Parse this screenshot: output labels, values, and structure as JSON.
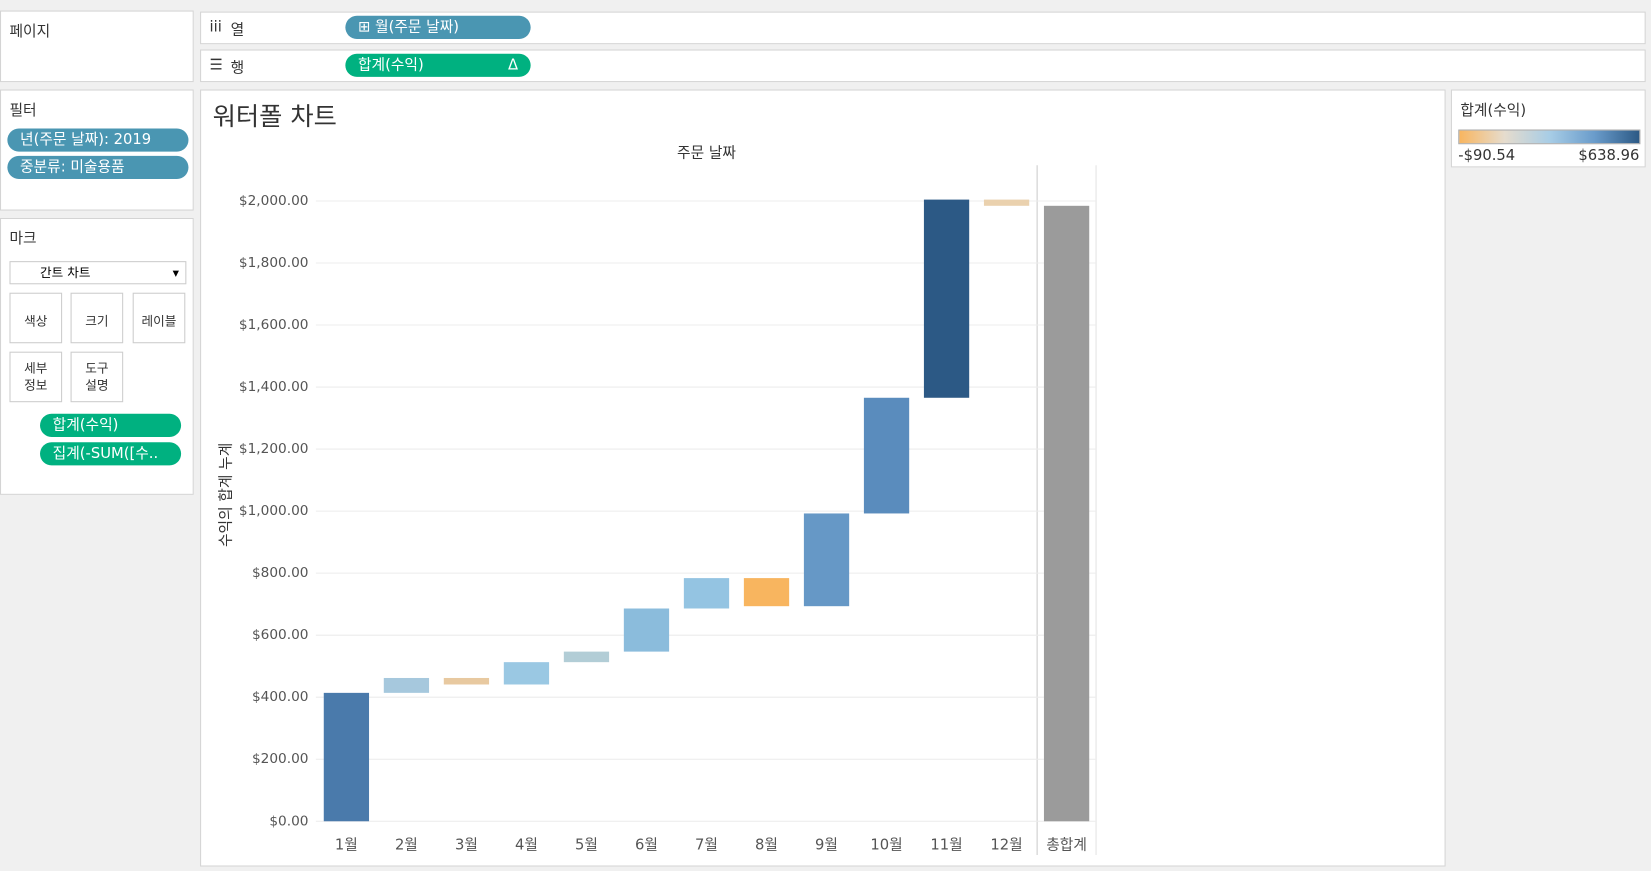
{
  "ui": {
    "pages_label": "페이지",
    "columns_label": "열",
    "rows_label": "행",
    "columns_pill": "⊞ 월(주문 날짜)",
    "rows_pill": "합계(수익)",
    "rows_pill_icon": "Δ",
    "filters_label": "필터",
    "filters": [
      "년(주문 날짜): 2019",
      "중분류: 미술용품"
    ],
    "marks_label": "마크",
    "mark_type": "간트 차트",
    "mark_buttons": [
      [
        "색상"
      ],
      [
        "크기"
      ],
      [
        "레이블"
      ],
      [
        "세부",
        "정보"
      ],
      [
        "도구",
        "설명"
      ]
    ],
    "mark_pills": [
      "합계(수익)",
      "집계(-SUM([수.."
    ]
  },
  "chart_data": {
    "type": "waterfall",
    "title": "워터폴 차트",
    "x_title": "주문 날짜",
    "y_title": "수익의 합계 누계",
    "categories": [
      "1월",
      "2월",
      "3월",
      "4월",
      "5월",
      "6월",
      "7월",
      "8월",
      "9월",
      "10월",
      "11월",
      "12월"
    ],
    "values": [
      414,
      48,
      -21,
      72,
      34,
      139,
      98,
      -90.54,
      299,
      373,
      638.96,
      -20
    ],
    "colors": [
      "#4a7aab",
      "#a6c8dd",
      "#e8c9a0",
      "#9ac8e3",
      "#b2cdd6",
      "#8bbcdc",
      "#94c4e2",
      "#f8b55f",
      "#6698c6",
      "#5a8cbd",
      "#2c5985",
      "#ead1ae"
    ],
    "total_label": "총합계",
    "total": 1984.42,
    "total_color": "#9b9b9b",
    "ylim": [
      0,
      2115
    ],
    "yticks": [
      {
        "value": 0,
        "label": "$0.00"
      },
      {
        "value": 200,
        "label": "$200.00"
      },
      {
        "value": 400,
        "label": "$400.00"
      },
      {
        "value": 600,
        "label": "$600.00"
      },
      {
        "value": 800,
        "label": "$800.00"
      },
      {
        "value": 1000,
        "label": "$1,000.00"
      },
      {
        "value": 1200,
        "label": "$1,200.00"
      },
      {
        "value": 1400,
        "label": "$1,400.00"
      },
      {
        "value": 1600,
        "label": "$1,600.00"
      },
      {
        "value": 1800,
        "label": "$1,800.00"
      },
      {
        "value": 2000,
        "label": "$2,000.00"
      }
    ],
    "grid": true,
    "legend": {
      "title": "합계(수익)",
      "min_label": "-$90.54",
      "max_label": "$638.96",
      "gradient": [
        "#f8b55f",
        "#e6dccd",
        "#a8cde6",
        "#6a9ccb",
        "#2c5985"
      ]
    }
  }
}
